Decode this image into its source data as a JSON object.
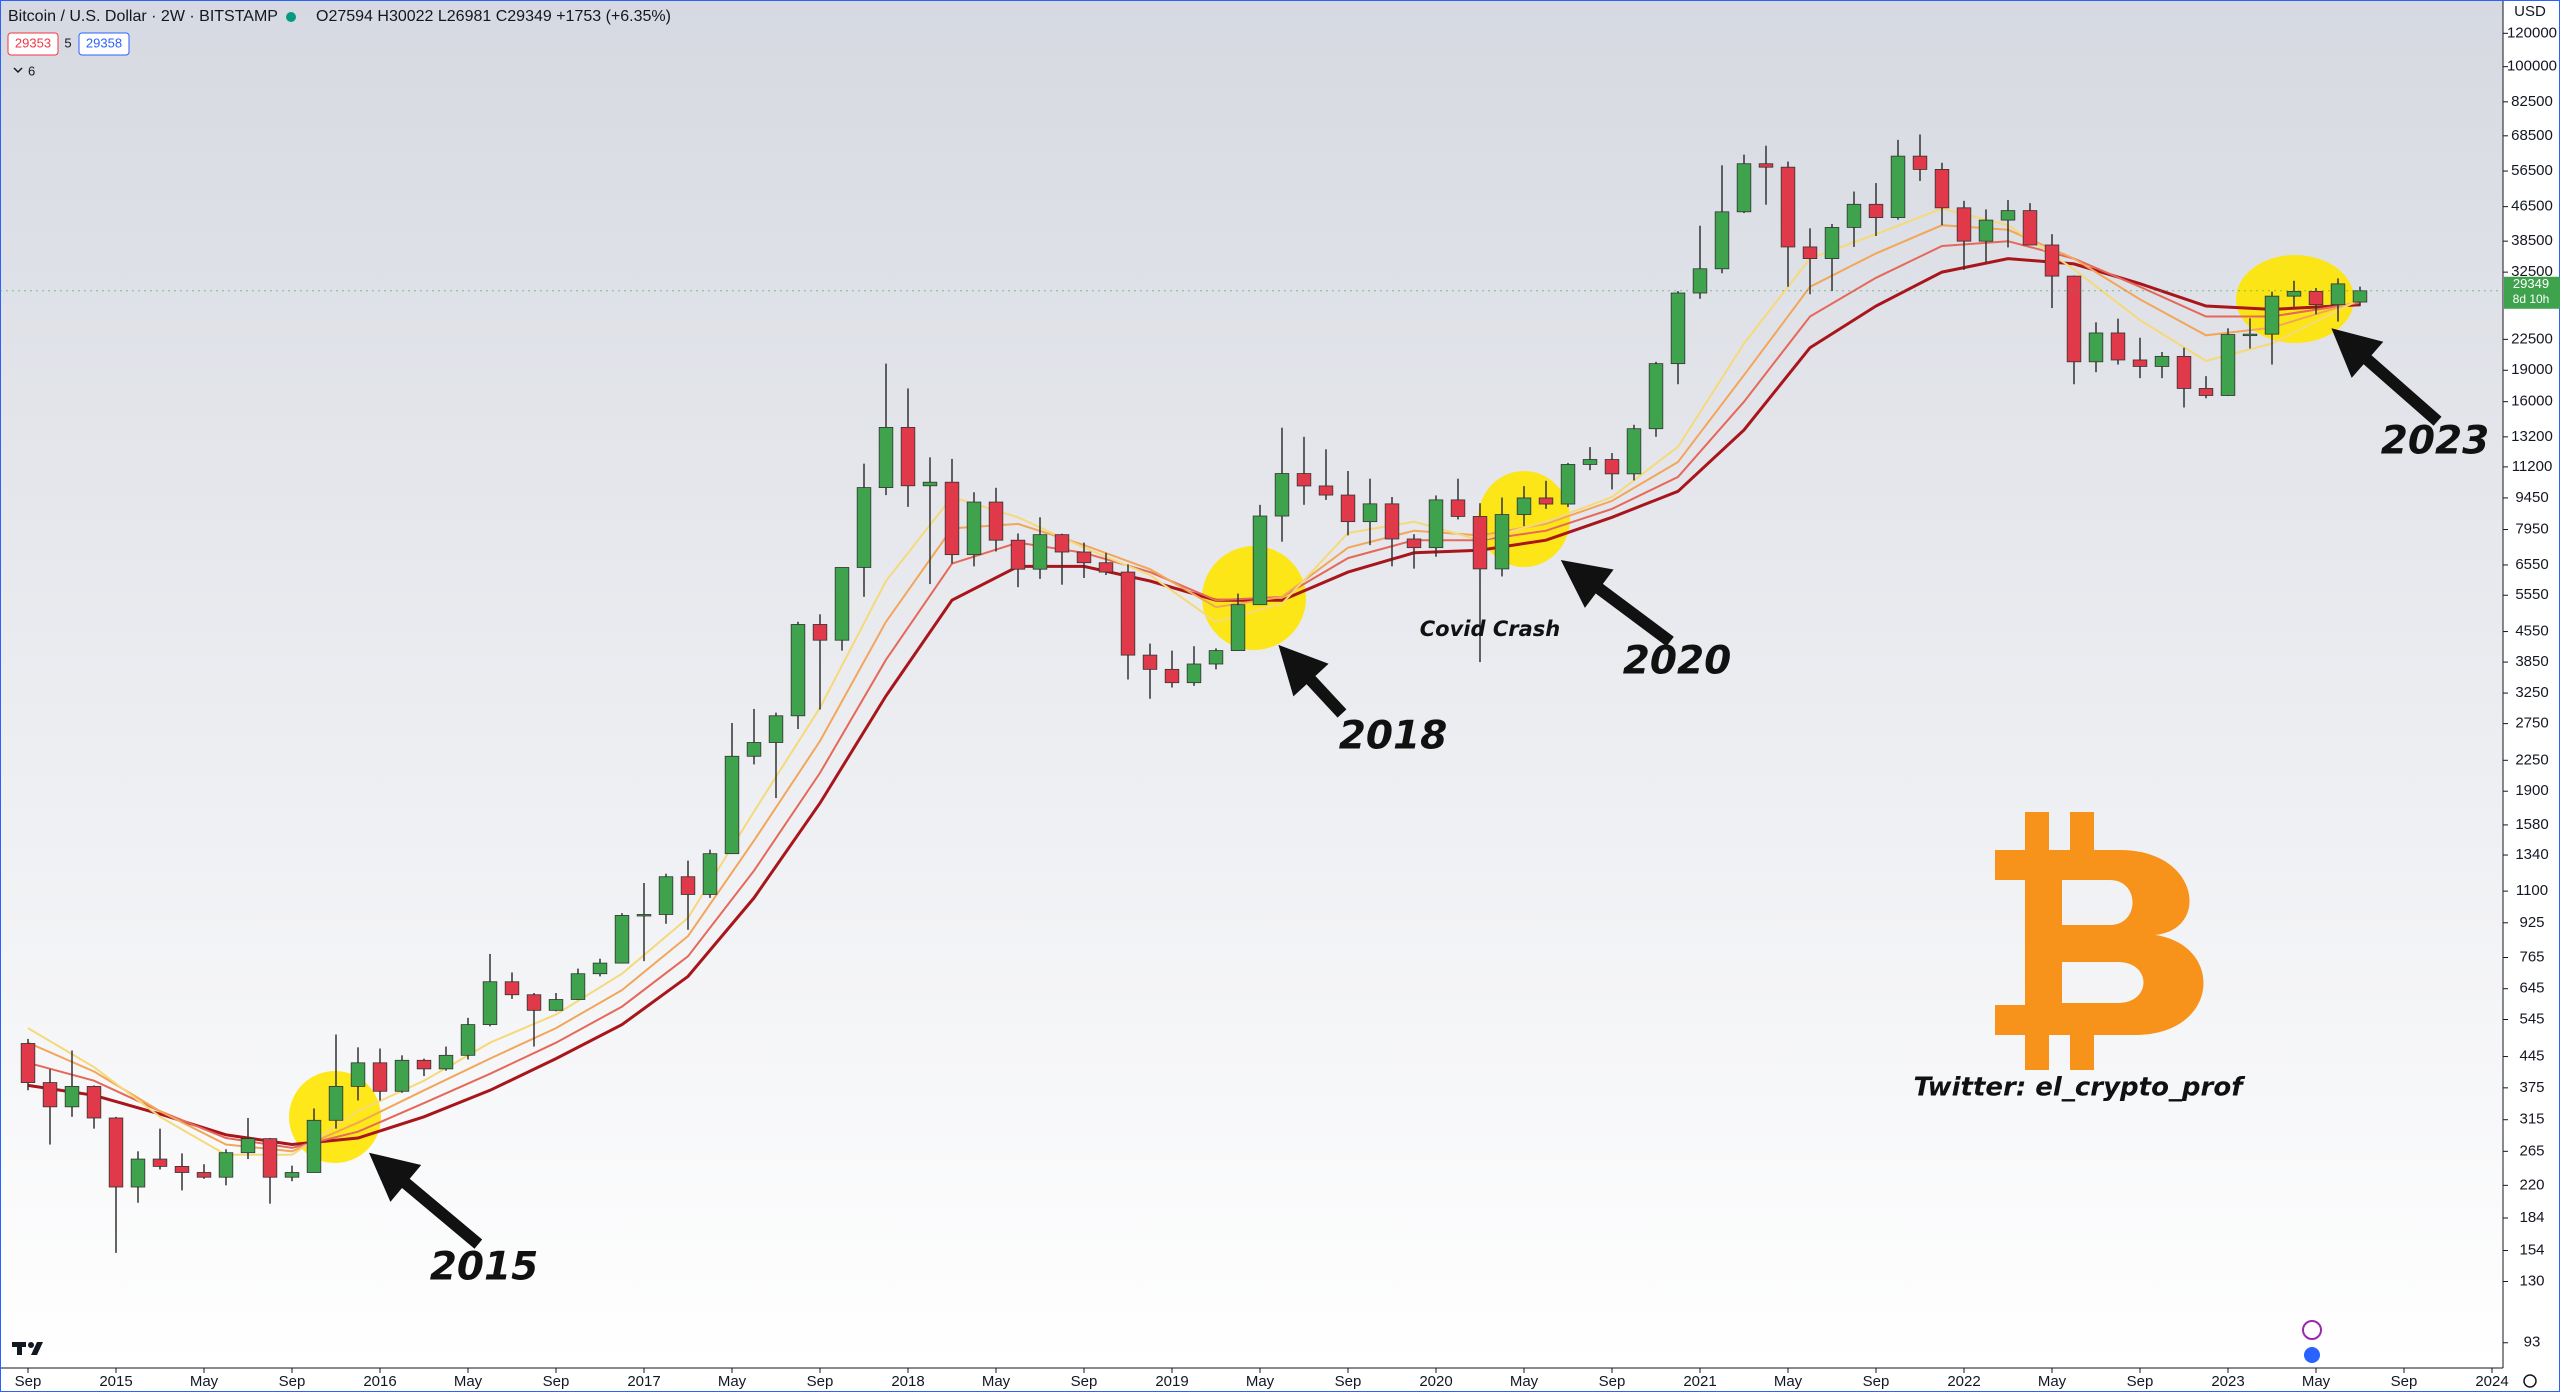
{
  "toolbar": {
    "symbol": "Bitcoin / U.S. Dollar · 2W · BITSTAMP",
    "ohlc": "O27594 H30022 L26981 C29349 +1753 (+6.35%)",
    "bid": "29353",
    "spread": "5",
    "ask": "29358",
    "indicators": "6"
  },
  "chart_data": {
    "type": "candlestick",
    "log_scale": true,
    "grid": false,
    "y_unit": "USD",
    "countdown": "8d 10h",
    "up_color": "#3fa34d",
    "down_color": "#e0394a",
    "annotations": [
      "2015",
      "2018",
      "2020",
      "2023",
      "Covid Crash",
      "Twitter: el_crypto_prof"
    ],
    "xlim": [
      "2014-08",
      "2024-01"
    ],
    "ylim": [
      81,
      144000
    ],
    "xticks": [
      {
        "value": "2014-09",
        "label": "Sep"
      },
      {
        "value": "2015-01",
        "label": "2015"
      },
      {
        "value": "2015-05",
        "label": "May"
      },
      {
        "value": "2015-09",
        "label": "Sep"
      },
      {
        "value": "2016-01",
        "label": "2016"
      },
      {
        "value": "2016-05",
        "label": "May"
      },
      {
        "value": "2016-09",
        "label": "Sep"
      },
      {
        "value": "2017-01",
        "label": "2017"
      },
      {
        "value": "2017-05",
        "label": "May"
      },
      {
        "value": "2017-09",
        "label": "Sep"
      },
      {
        "value": "2018-01",
        "label": "2018"
      },
      {
        "value": "2018-05",
        "label": "May"
      },
      {
        "value": "2018-09",
        "label": "Sep"
      },
      {
        "value": "2019-01",
        "label": "2019"
      },
      {
        "value": "2019-05",
        "label": "May"
      },
      {
        "value": "2019-09",
        "label": "Sep"
      },
      {
        "value": "2020-01",
        "label": "2020"
      },
      {
        "value": "2020-05",
        "label": "May"
      },
      {
        "value": "2020-09",
        "label": "Sep"
      },
      {
        "value": "2021-01",
        "label": "2021"
      },
      {
        "value": "2021-05",
        "label": "May"
      },
      {
        "value": "2021-09",
        "label": "Sep"
      },
      {
        "value": "2022-01",
        "label": "2022"
      },
      {
        "value": "2022-05",
        "label": "May"
      },
      {
        "value": "2022-09",
        "label": "Sep"
      },
      {
        "value": "2023-01",
        "label": "2023"
      },
      {
        "value": "2023-05",
        "label": "May"
      },
      {
        "value": "2023-09",
        "label": "Sep"
      },
      {
        "value": "2024-01",
        "label": "2024"
      }
    ],
    "yticks": [
      120000,
      100000,
      82500,
      68500,
      56500,
      46500,
      38500,
      32500,
      22500,
      19000,
      16000,
      13200,
      11200,
      9450,
      7950,
      6550,
      5550,
      4550,
      3850,
      3250,
      2750,
      2250,
      1900,
      1580,
      1340,
      1100,
      925,
      765,
      645,
      545,
      445,
      375,
      315,
      265,
      220,
      184,
      154,
      130,
      93
    ],
    "x": [
      "2014-09",
      "2014-10",
      "2014-11",
      "2014-12",
      "2015-01",
      "2015-02",
      "2015-03",
      "2015-04",
      "2015-05",
      "2015-06",
      "2015-07",
      "2015-08",
      "2015-09",
      "2015-10",
      "2015-11",
      "2015-12",
      "2016-01",
      "2016-02",
      "2016-03",
      "2016-04",
      "2016-05",
      "2016-06",
      "2016-07",
      "2016-08",
      "2016-09",
      "2016-10",
      "2016-11",
      "2016-12",
      "2017-01",
      "2017-02",
      "2017-03",
      "2017-04",
      "2017-05",
      "2017-06",
      "2017-07",
      "2017-08",
      "2017-09",
      "2017-10",
      "2017-11",
      "2017-12",
      "2018-01",
      "2018-02",
      "2018-03",
      "2018-04",
      "2018-05",
      "2018-06",
      "2018-07",
      "2018-08",
      "2018-09",
      "2018-10",
      "2018-11",
      "2018-12",
      "2019-01",
      "2019-02",
      "2019-03",
      "2019-04",
      "2019-05",
      "2019-06",
      "2019-07",
      "2019-08",
      "2019-09",
      "2019-10",
      "2019-11",
      "2019-12",
      "2020-01",
      "2020-02",
      "2020-03",
      "2020-04",
      "2020-05",
      "2020-06",
      "2020-07",
      "2020-08",
      "2020-09",
      "2020-10",
      "2020-11",
      "2020-12",
      "2021-01",
      "2021-02",
      "2021-03",
      "2021-04",
      "2021-05",
      "2021-06",
      "2021-07",
      "2021-08",
      "2021-09",
      "2021-10",
      "2021-11",
      "2021-12",
      "2022-01",
      "2022-02",
      "2022-03",
      "2022-04",
      "2022-05",
      "2022-06",
      "2022-07",
      "2022-08",
      "2022-09",
      "2022-10",
      "2022-11",
      "2022-12",
      "2023-01",
      "2023-02",
      "2023-03",
      "2023-04",
      "2023-05",
      "2023-06",
      "2023-07"
    ],
    "open": [
      478,
      386,
      338,
      378,
      318,
      218,
      254,
      244,
      236,
      230,
      263,
      284,
      230,
      236,
      314,
      378,
      430,
      368,
      436,
      416,
      448,
      530,
      670,
      624,
      573,
      608,
      700,
      742,
      963,
      968,
      1190,
      1080,
      1350,
      2300,
      2480,
      2870,
      4730,
      4340,
      6460,
      10000,
      13900,
      10100,
      10300,
      6930,
      9240,
      7500,
      6400,
      7730,
      7030,
      6630,
      6300,
      4000,
      3700,
      3440,
      3810,
      4100,
      5270,
      8560,
      10800,
      10090,
      9600,
      8300,
      9150,
      7550,
      7200,
      9350,
      8540,
      6410,
      8630,
      9450,
      9140,
      11350,
      11660,
      10780,
      13800,
      19700,
      28990,
      33100,
      45200,
      58800,
      57700,
      37300,
      35000,
      41500,
      47100,
      43800,
      61300,
      57000,
      46200,
      38500,
      43200,
      45500,
      37700,
      31800,
      19900,
      23300,
      20100,
      19400,
      20500,
      17200,
      16550,
      23100,
      23150,
      28500,
      29250,
      27200,
      27594
    ],
    "high": [
      490,
      415,
      460,
      380,
      320,
      265,
      300,
      262,
      247,
      268,
      318,
      285,
      245,
      335,
      502,
      468,
      465,
      448,
      440,
      470,
      550,
      780,
      705,
      630,
      630,
      720,
      760,
      975,
      1150,
      1210,
      1300,
      1380,
      2760,
      2980,
      2920,
      4800,
      5000,
      6470,
      11400,
      19700,
      17200,
      11800,
      11700,
      9750,
      9990,
      7780,
      8500,
      7770,
      7400,
      7000,
      6570,
      4260,
      4100,
      4200,
      4150,
      5600,
      9100,
      13880,
      13200,
      12330,
      10950,
      10500,
      9500,
      7750,
      9580,
      10500,
      9180,
      9470,
      10080,
      10380,
      11450,
      12480,
      12080,
      14100,
      19900,
      29300,
      41900,
      58300,
      61800,
      64900,
      59500,
      41300,
      42300,
      50500,
      52900,
      67000,
      69000,
      59100,
      48000,
      45800,
      48200,
      47400,
      40000,
      31900,
      24700,
      25200,
      22700,
      21000,
      21500,
      18400,
      23900,
      25250,
      29200,
      31000,
      29800,
      31400,
      30022
    ],
    "low": [
      370,
      275,
      320,
      300,
      152,
      200,
      240,
      214,
      228,
      220,
      254,
      199,
      225,
      236,
      300,
      350,
      350,
      365,
      400,
      412,
      438,
      525,
      610,
      470,
      570,
      606,
      690,
      740,
      750,
      920,
      890,
      1060,
      1350,
      2200,
      1830,
      2670,
      2970,
      4100,
      5500,
      9600,
      9000,
      5900,
      6600,
      6500,
      7050,
      5800,
      6070,
      5880,
      6100,
      6200,
      3500,
      3150,
      3350,
      3380,
      3700,
      4090,
      5260,
      7440,
      9100,
      9350,
      7700,
      7300,
      6500,
      6420,
      6850,
      8400,
      3850,
      6150,
      8100,
      8900,
      8990,
      11000,
      9900,
      10400,
      13200,
      17600,
      28100,
      32300,
      44900,
      47000,
      30000,
      28800,
      29300,
      37300,
      39600,
      43300,
      53500,
      42000,
      32900,
      34300,
      37200,
      37700,
      26700,
      17600,
      18800,
      19600,
      18200,
      18200,
      15500,
      16300,
      16500,
      21400,
      19600,
      26900,
      25800,
      24800,
      26981
    ],
    "close": [
      386,
      338,
      378,
      318,
      218,
      254,
      244,
      236,
      230,
      263,
      284,
      230,
      236,
      314,
      378,
      430,
      368,
      436,
      416,
      448,
      530,
      670,
      624,
      573,
      608,
      700,
      742,
      963,
      968,
      1190,
      1080,
      1350,
      2300,
      2480,
      2870,
      4730,
      4340,
      6460,
      10000,
      13900,
      10100,
      10300,
      6930,
      9240,
      7500,
      6400,
      7730,
      7030,
      6630,
      6300,
      4000,
      3700,
      3440,
      3810,
      4100,
      5270,
      8560,
      10800,
      10090,
      9600,
      8300,
      9150,
      7550,
      7200,
      9350,
      8540,
      6410,
      8630,
      9450,
      9140,
      11350,
      11660,
      10780,
      13800,
      19700,
      28990,
      33100,
      45200,
      58800,
      57700,
      37300,
      35000,
      41500,
      47100,
      43800,
      61300,
      57000,
      46200,
      38500,
      43200,
      45500,
      37700,
      31800,
      19900,
      23300,
      20100,
      19400,
      20500,
      17200,
      16550,
      23100,
      23150,
      28500,
      29250,
      27200,
      30480,
      29349
    ],
    "ma_ribbon": {
      "x": [
        "2014-09",
        "2014-12",
        "2015-03",
        "2015-06",
        "2015-09",
        "2015-12",
        "2016-03",
        "2016-06",
        "2016-09",
        "2016-12",
        "2017-03",
        "2017-06",
        "2017-09",
        "2017-12",
        "2018-03",
        "2018-06",
        "2018-09",
        "2018-12",
        "2019-03",
        "2019-06",
        "2019-09",
        "2019-12",
        "2020-03",
        "2020-06",
        "2020-09",
        "2020-12",
        "2021-03",
        "2021-06",
        "2021-09",
        "2021-12",
        "2022-03",
        "2022-06",
        "2022-09",
        "2022-12",
        "2023-03",
        "2023-07"
      ],
      "lines": [
        {
          "color": "#f5d97a",
          "values": [
            520,
            420,
            320,
            260,
            260,
            330,
            390,
            480,
            560,
            700,
            950,
            1700,
            3000,
            6000,
            9500,
            8500,
            7200,
            6200,
            4800,
            5300,
            7800,
            8300,
            7500,
            8300,
            9500,
            12500,
            22000,
            35000,
            40000,
            46000,
            42000,
            33000,
            25000,
            20000,
            22000,
            28000
          ]
        },
        {
          "color": "#f2a65a",
          "values": [
            480,
            410,
            330,
            275,
            265,
            310,
            370,
            440,
            520,
            640,
            860,
            1450,
            2500,
            4800,
            8000,
            8200,
            7300,
            6400,
            5200,
            5500,
            7200,
            7900,
            7700,
            8200,
            9300,
            11500,
            18500,
            30000,
            36000,
            42000,
            41000,
            35000,
            28000,
            23000,
            24000,
            27800
          ]
        },
        {
          "color": "#e5685a",
          "values": [
            430,
            390,
            330,
            285,
            270,
            295,
            345,
            405,
            480,
            585,
            770,
            1230,
            2100,
            3900,
            6600,
            7400,
            7000,
            6300,
            5400,
            5500,
            6800,
            7500,
            7500,
            7900,
            8900,
            10600,
            16000,
            25500,
            31500,
            37500,
            38500,
            35000,
            30000,
            25500,
            25500,
            27500
          ]
        },
        {
          "color": "#a8161c",
          "values": [
            380,
            360,
            325,
            290,
            275,
            285,
            320,
            370,
            440,
            530,
            690,
            1060,
            1780,
            3200,
            5400,
            6500,
            6500,
            6000,
            5400,
            5400,
            6300,
            7000,
            7100,
            7500,
            8500,
            9800,
            13700,
            21500,
            27000,
            32500,
            35000,
            34000,
            30500,
            27000,
            26500,
            27200
          ]
        }
      ]
    }
  }
}
